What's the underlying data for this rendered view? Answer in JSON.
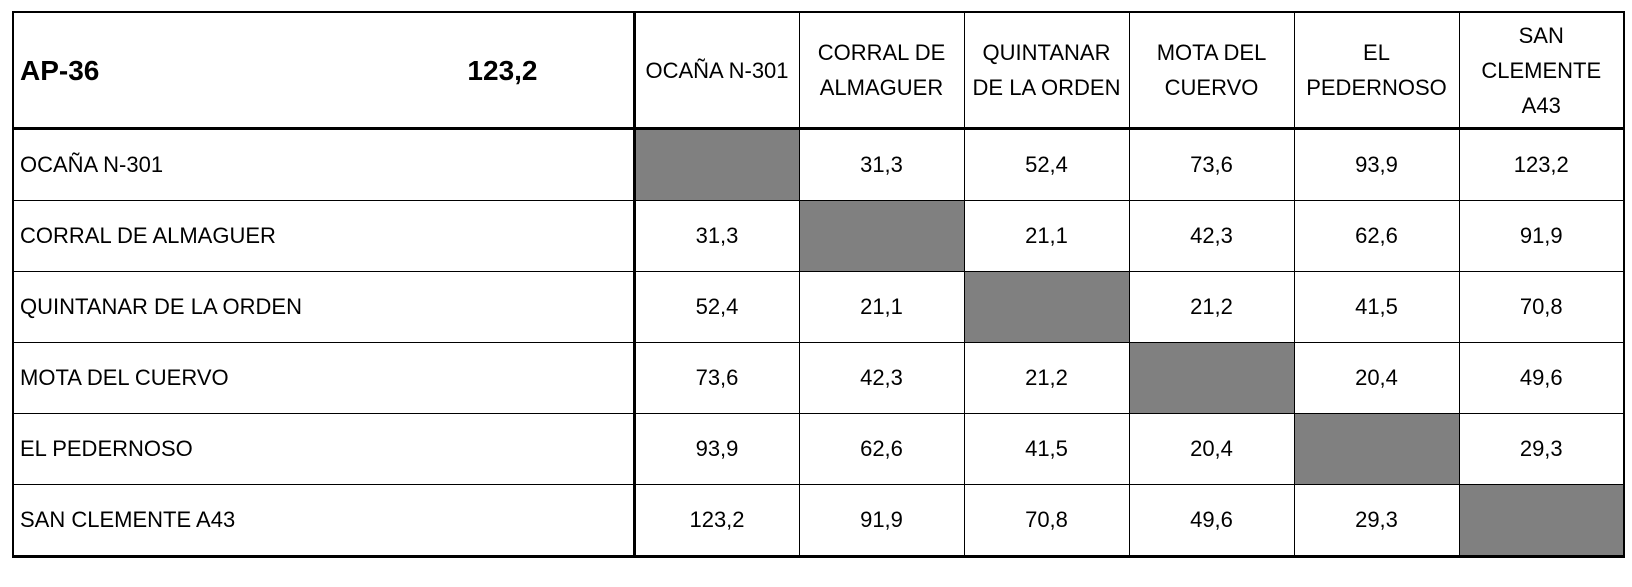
{
  "chart_data": {
    "type": "table",
    "route": "AP-36",
    "total_km": "123,2",
    "columns": [
      "OCAÑA N-301",
      "CORRAL DE ALMAGUER",
      "QUINTANAR DE LA ORDEN",
      "MOTA DEL CUERVO",
      "EL PEDERNOSO",
      "SAN CLEMENTE A43"
    ],
    "rows": [
      {
        "label": "OCAÑA N-301",
        "values": [
          "",
          "31,3",
          "52,4",
          "73,6",
          "93,9",
          "123,2"
        ]
      },
      {
        "label": "CORRAL DE ALMAGUER",
        "values": [
          "31,3",
          "",
          "21,1",
          "42,3",
          "62,6",
          "91,9"
        ]
      },
      {
        "label": "QUINTANAR DE LA ORDEN",
        "values": [
          "52,4",
          "21,1",
          "",
          "21,2",
          "41,5",
          "70,8"
        ]
      },
      {
        "label": "MOTA DEL CUERVO",
        "values": [
          "73,6",
          "42,3",
          "21,2",
          "",
          "20,4",
          "49,6"
        ]
      },
      {
        "label": "EL PEDERNOSO",
        "values": [
          "93,9",
          "62,6",
          "41,5",
          "20,4",
          "",
          "29,3"
        ]
      },
      {
        "label": "SAN CLEMENTE A43",
        "values": [
          "123,2",
          "91,9",
          "70,8",
          "49,6",
          "29,3",
          ""
        ]
      }
    ],
    "diagonal_color": "#808080"
  }
}
